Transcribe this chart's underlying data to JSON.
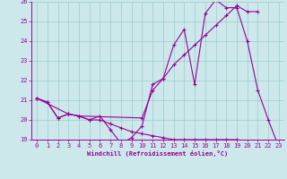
{
  "xlabel": "Windchill (Refroidissement éolien,°C)",
  "bg_color": "#cce8ea",
  "line_color": "#990099",
  "grid_color": "#99cccc",
  "xlim": [
    -0.5,
    23.5
  ],
  "ylim": [
    19,
    26
  ],
  "xticks": [
    0,
    1,
    2,
    3,
    4,
    5,
    6,
    7,
    8,
    9,
    10,
    11,
    12,
    13,
    14,
    15,
    16,
    17,
    18,
    19,
    20,
    21,
    22,
    23
  ],
  "yticks": [
    19,
    20,
    21,
    22,
    23,
    24,
    25,
    26
  ],
  "lines": [
    {
      "x": [
        0,
        1,
        2,
        3,
        4,
        5,
        6,
        7,
        8,
        9,
        10,
        11,
        12,
        13,
        14,
        15,
        16,
        17,
        18,
        19,
        20,
        21,
        22,
        23
      ],
      "y": [
        21.1,
        20.9,
        20.1,
        20.3,
        20.2,
        20.0,
        20.2,
        19.5,
        18.8,
        19.1,
        19.7,
        21.8,
        22.1,
        23.8,
        24.6,
        21.8,
        25.4,
        26.1,
        25.7,
        25.7,
        24.0,
        21.5,
        20.0,
        18.6
      ]
    },
    {
      "x": [
        0,
        3,
        4,
        10,
        11,
        12,
        13,
        14,
        15,
        16,
        17,
        18,
        19,
        20,
        21
      ],
      "y": [
        21.1,
        20.3,
        20.2,
        20.1,
        21.5,
        22.1,
        22.8,
        23.3,
        23.8,
        24.3,
        24.8,
        25.3,
        25.8,
        25.5,
        25.5
      ]
    },
    {
      "x": [
        0,
        1,
        2,
        3,
        4,
        5,
        6,
        7,
        8,
        9,
        10,
        11,
        12,
        13,
        14,
        15,
        16,
        17,
        18,
        19,
        20,
        21,
        22,
        23
      ],
      "y": [
        21.1,
        20.9,
        20.1,
        20.3,
        20.2,
        20.0,
        20.0,
        19.8,
        19.6,
        19.4,
        19.3,
        19.2,
        19.1,
        19.0,
        19.0,
        19.0,
        19.0,
        19.0,
        19.0,
        19.0,
        18.9,
        18.8,
        18.8,
        18.6
      ]
    }
  ]
}
